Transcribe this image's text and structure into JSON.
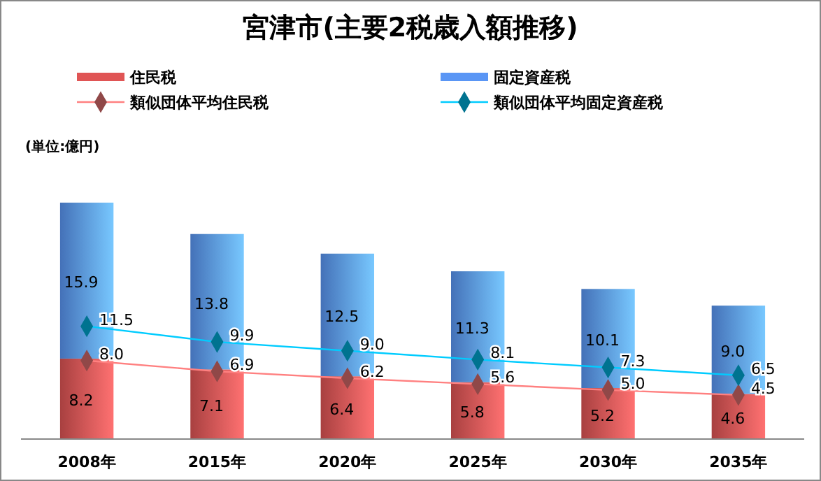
{
  "chart_data": {
    "type": "bar",
    "title": "宮津市(主要2税歳入額推移)",
    "annotations": [
      "(単位:億円)"
    ],
    "categories": [
      "2008年",
      "2015年",
      "2020年",
      "2025年",
      "2030年",
      "2035年"
    ],
    "stacked": true,
    "legend": "top",
    "marker": "diamond",
    "series": [
      {
        "name": "住民税",
        "color": "#e05555",
        "values": [
          8.2,
          7.1,
          6.4,
          5.8,
          5.2,
          4.6
        ],
        "value_labels": [
          "8.2",
          "7.1",
          "6.4",
          "5.8",
          "5.2",
          "4.6"
        ]
      },
      {
        "name": "固定資産税",
        "color": "#5a96f5",
        "values": [
          15.9,
          13.8,
          12.5,
          11.3,
          10.1,
          9.0
        ],
        "value_labels": [
          "15.9",
          "13.8",
          "12.5",
          "11.3",
          "10.1",
          "9.0"
        ]
      },
      {
        "name": "類似団体平均住民税",
        "type": "line",
        "color": "#ff8080",
        "values": [
          8.0,
          6.9,
          6.2,
          5.6,
          5.0,
          4.5
        ],
        "value_labels": [
          "8.0",
          "6.9",
          "6.2",
          "5.6",
          "5.0",
          "4.5"
        ]
      },
      {
        "name": "類似団体平均固定資産税",
        "type": "line",
        "color": "#00ccff",
        "values": [
          11.5,
          9.9,
          9.0,
          8.1,
          7.3,
          6.5
        ],
        "value_labels": [
          "11.5",
          "9.9",
          "9.0",
          "8.1",
          "7.3",
          "6.5"
        ]
      }
    ]
  }
}
